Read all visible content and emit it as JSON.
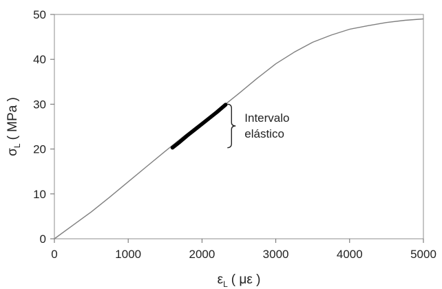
{
  "chart_data": {
    "type": "line",
    "title": "",
    "xlabel": {
      "main": "ε",
      "sub": "L",
      "unit": "( με )"
    },
    "ylabel": {
      "main": "σ",
      "sub": "L",
      "unit": "( MPa )"
    },
    "xlim": [
      0,
      5000
    ],
    "ylim": [
      0,
      50
    ],
    "xticks": [
      0,
      1000,
      2000,
      3000,
      4000,
      5000
    ],
    "yticks": [
      0,
      10,
      20,
      30,
      40,
      50
    ],
    "xtick_labels": [
      "0",
      "1000",
      "2000",
      "3000",
      "4000",
      "5000"
    ],
    "ytick_labels": [
      "0",
      "10",
      "20",
      "30",
      "40",
      "50"
    ],
    "grid": false,
    "series": [
      {
        "color": "#7f7f7f",
        "x": [
          0,
          250,
          500,
          750,
          1000,
          1250,
          1500,
          1750,
          2000,
          2250,
          2500,
          2750,
          3000,
          3250,
          3500,
          3750,
          4000,
          4250,
          4500,
          4750,
          5000
        ],
        "y": [
          0,
          3.0,
          6.0,
          9.3,
          12.7,
          16.1,
          19.5,
          22.8,
          26.0,
          29.1,
          32.4,
          35.8,
          39.0,
          41.6,
          43.8,
          45.4,
          46.7,
          47.5,
          48.2,
          48.7,
          49.0
        ]
      },
      {
        "color": "#000000",
        "x": [
          1600,
          1700,
          1800,
          1900,
          2000,
          2100,
          2200,
          2320
        ],
        "y": [
          20.3,
          21.6,
          23.0,
          24.3,
          25.6,
          26.9,
          28.2,
          29.9
        ]
      }
    ],
    "annotation": {
      "lines": [
        "Intervalo",
        "elástico"
      ],
      "bracket_y": [
        20.3,
        30.0
      ],
      "bracket_x": 2400
    }
  }
}
